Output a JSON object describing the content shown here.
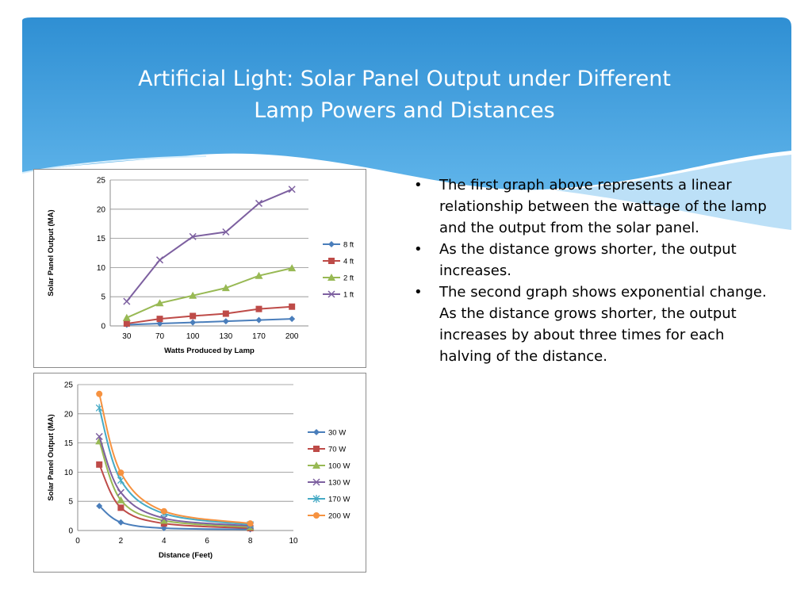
{
  "slide": {
    "title_line1": "Artificial Light: Solar Panel Output under Different",
    "title_line2": "Lamp Powers and Distances",
    "banner_color": "#3a98d6"
  },
  "bullets": [
    {
      "symbol": "•",
      "text": "The first graph above represents a linear relationship between the wattage of the lamp and the output from the solar panel."
    },
    {
      "symbol": "•",
      "text": "As the distance grows shorter, the output increases."
    },
    {
      "symbol": "•",
      "text": "The second graph shows exponential change. As the distance grows shorter, the output increases by about three times for each halving of the distance."
    }
  ],
  "chart_data": [
    {
      "type": "line",
      "xlabel": "Watts Produced by Lamp",
      "ylabel": "Solar Panel Output (MA)",
      "categories": [
        "30",
        "70",
        "100",
        "130",
        "170",
        "200"
      ],
      "ylim": [
        0,
        25
      ],
      "yticks": [
        "0",
        "5",
        "10",
        "15",
        "20",
        "25"
      ],
      "grid": true,
      "legend_position": "right",
      "series": [
        {
          "name": "8 ft",
          "color": "#4a7ebb",
          "marker": "diamond",
          "values": [
            0.2,
            0.4,
            0.6,
            0.8,
            1.0,
            1.2
          ]
        },
        {
          "name": "4 ft",
          "color": "#be4b48",
          "marker": "square",
          "values": [
            0.4,
            1.2,
            1.7,
            2.1,
            2.9,
            3.3
          ]
        },
        {
          "name": "2 ft",
          "color": "#98b954",
          "marker": "triangle",
          "values": [
            1.4,
            3.9,
            5.2,
            6.5,
            8.6,
            9.9
          ]
        },
        {
          "name": "1 ft",
          "color": "#7d60a0",
          "marker": "x",
          "values": [
            4.2,
            11.3,
            15.3,
            16.1,
            21.0,
            23.4
          ]
        }
      ]
    },
    {
      "type": "scatter",
      "xlabel": "Distance (Feet)",
      "ylabel": "Solar Panel Output (MA)",
      "xlim": [
        0,
        10
      ],
      "xticks": [
        "0",
        "2",
        "4",
        "6",
        "8",
        "10"
      ],
      "ylim": [
        0,
        25
      ],
      "yticks": [
        "0",
        "5",
        "10",
        "15",
        "20",
        "25"
      ],
      "grid": true,
      "legend_position": "right",
      "x": [
        1,
        2,
        4,
        8
      ],
      "series": [
        {
          "name": "30 W",
          "color": "#4a7ebb",
          "marker": "diamond",
          "values": [
            4.2,
            1.4,
            0.4,
            0.2
          ]
        },
        {
          "name": "70 W",
          "color": "#be4b48",
          "marker": "square",
          "values": [
            11.3,
            3.9,
            1.2,
            0.4
          ]
        },
        {
          "name": "100 W",
          "color": "#98b954",
          "marker": "triangle",
          "values": [
            15.3,
            5.2,
            1.7,
            0.6
          ]
        },
        {
          "name": "130 W",
          "color": "#7d60a0",
          "marker": "x",
          "values": [
            16.1,
            6.5,
            2.1,
            0.8
          ]
        },
        {
          "name": "170 W",
          "color": "#46aac5",
          "marker": "star",
          "values": [
            21.0,
            8.6,
            2.9,
            1.0
          ]
        },
        {
          "name": "200 W",
          "color": "#f69240",
          "marker": "circle",
          "values": [
            23.4,
            9.9,
            3.3,
            1.2
          ]
        }
      ]
    }
  ]
}
